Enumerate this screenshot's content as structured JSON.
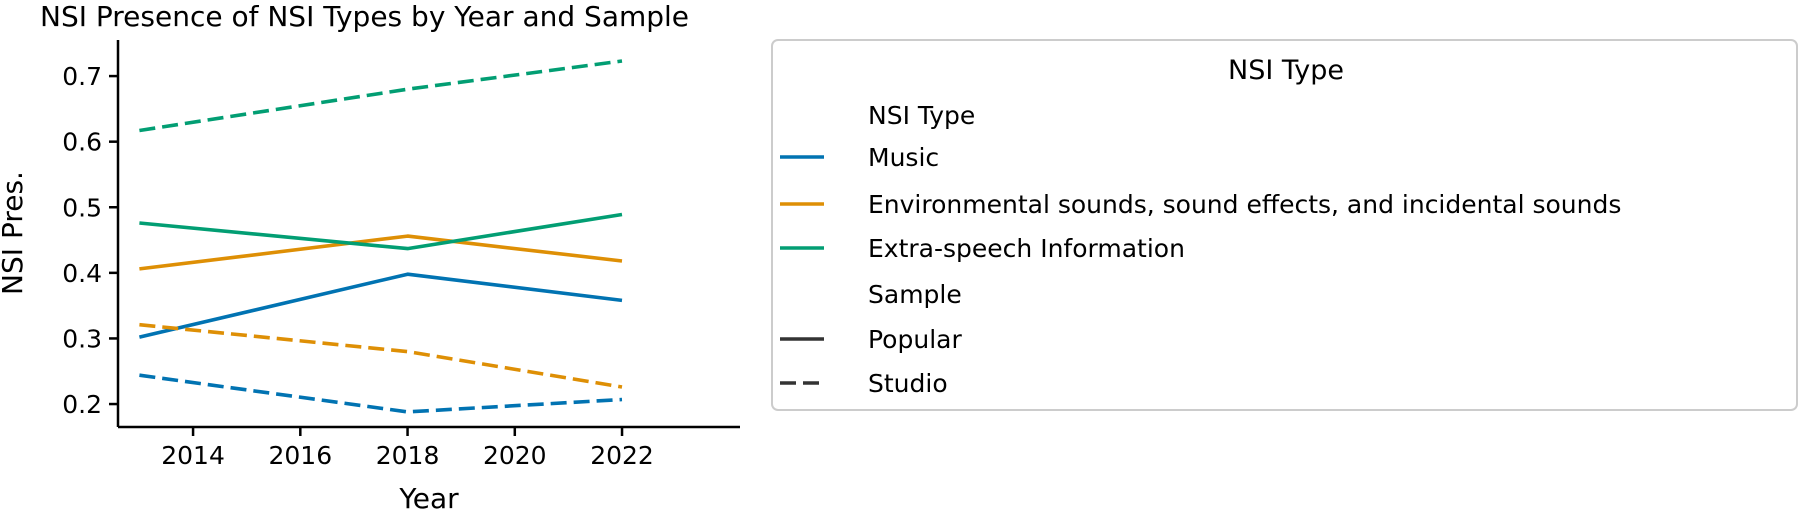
{
  "chart_data": {
    "type": "line",
    "title": "NSI Presence of NSI Types by Year and Sample",
    "xlabel": "Year",
    "ylabel": "NSI Pres.",
    "xlim": [
      2012.6,
      2024.2
    ],
    "ylim": [
      0.165,
      0.755
    ],
    "x_ticks": [
      2014,
      2016,
      2018,
      2020,
      2022
    ],
    "y_ticks": [
      0.2,
      0.3,
      0.4,
      0.5,
      0.6,
      0.7
    ],
    "x": [
      2013,
      2018,
      2022
    ],
    "grid": false,
    "legend": {
      "title": "NSI Type",
      "placement": "outside-right",
      "hue_header": "NSI Type",
      "style_header": "Sample",
      "hue_entries": [
        {
          "label": "Music",
          "color": "#0173b2"
        },
        {
          "label": "Environmental sounds, sound effects, and incidental sounds",
          "color": "#de8f05"
        },
        {
          "label": "Extra-speech Information",
          "color": "#029e73"
        }
      ],
      "style_entries": [
        {
          "label": "Popular",
          "dash": "solid"
        },
        {
          "label": "Studio",
          "dash": "dashed"
        }
      ],
      "style_color": "#333333"
    },
    "series": [
      {
        "type": "Music",
        "sample": "Popular",
        "color": "#0173b2",
        "dash": "solid",
        "values": [
          0.302,
          0.398,
          0.358
        ]
      },
      {
        "type": "Music",
        "sample": "Studio",
        "color": "#0173b2",
        "dash": "dashed",
        "values": [
          0.244,
          0.188,
          0.207
        ]
      },
      {
        "type": "Environmental sounds, sound effects, and incidental sounds",
        "sample": "Popular",
        "color": "#de8f05",
        "dash": "solid",
        "values": [
          0.406,
          0.456,
          0.418
        ]
      },
      {
        "type": "Environmental sounds, sound effects, and incidental sounds",
        "sample": "Studio",
        "color": "#de8f05",
        "dash": "dashed",
        "values": [
          0.321,
          0.28,
          0.226
        ]
      },
      {
        "type": "Extra-speech Information",
        "sample": "Popular",
        "color": "#029e73",
        "dash": "solid",
        "values": [
          0.476,
          0.437,
          0.489
        ]
      },
      {
        "type": "Extra-speech Information",
        "sample": "Studio",
        "color": "#029e73",
        "dash": "dashed",
        "values": [
          0.617,
          0.68,
          0.723
        ]
      }
    ]
  }
}
